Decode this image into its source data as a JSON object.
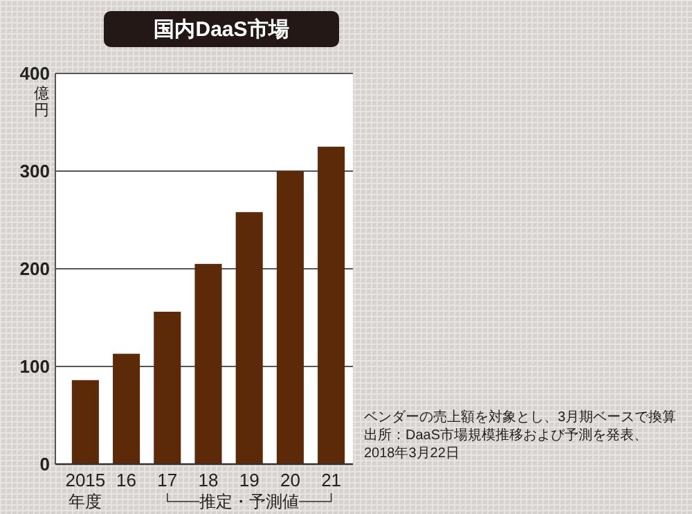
{
  "chart_data": {
    "type": "bar",
    "title": "国内DaaS市場",
    "ylabel": "億円",
    "xlabel": "年度",
    "categories": [
      "2015",
      "16",
      "17",
      "18",
      "19",
      "20",
      "21"
    ],
    "values": [
      86,
      113,
      156,
      205,
      258,
      300,
      325
    ],
    "color": "#5c2a08",
    "ylim": [
      0,
      400
    ],
    "yticks": [
      0,
      100,
      200,
      300,
      400
    ],
    "grid": "y",
    "annotations": [
      "推定・予測値",
      "ベンダーの売上額を対象とし、3月期ベースで換算",
      "出所：DaaS市場規模推移および予測を発表、2018年3月22日"
    ]
  }
}
